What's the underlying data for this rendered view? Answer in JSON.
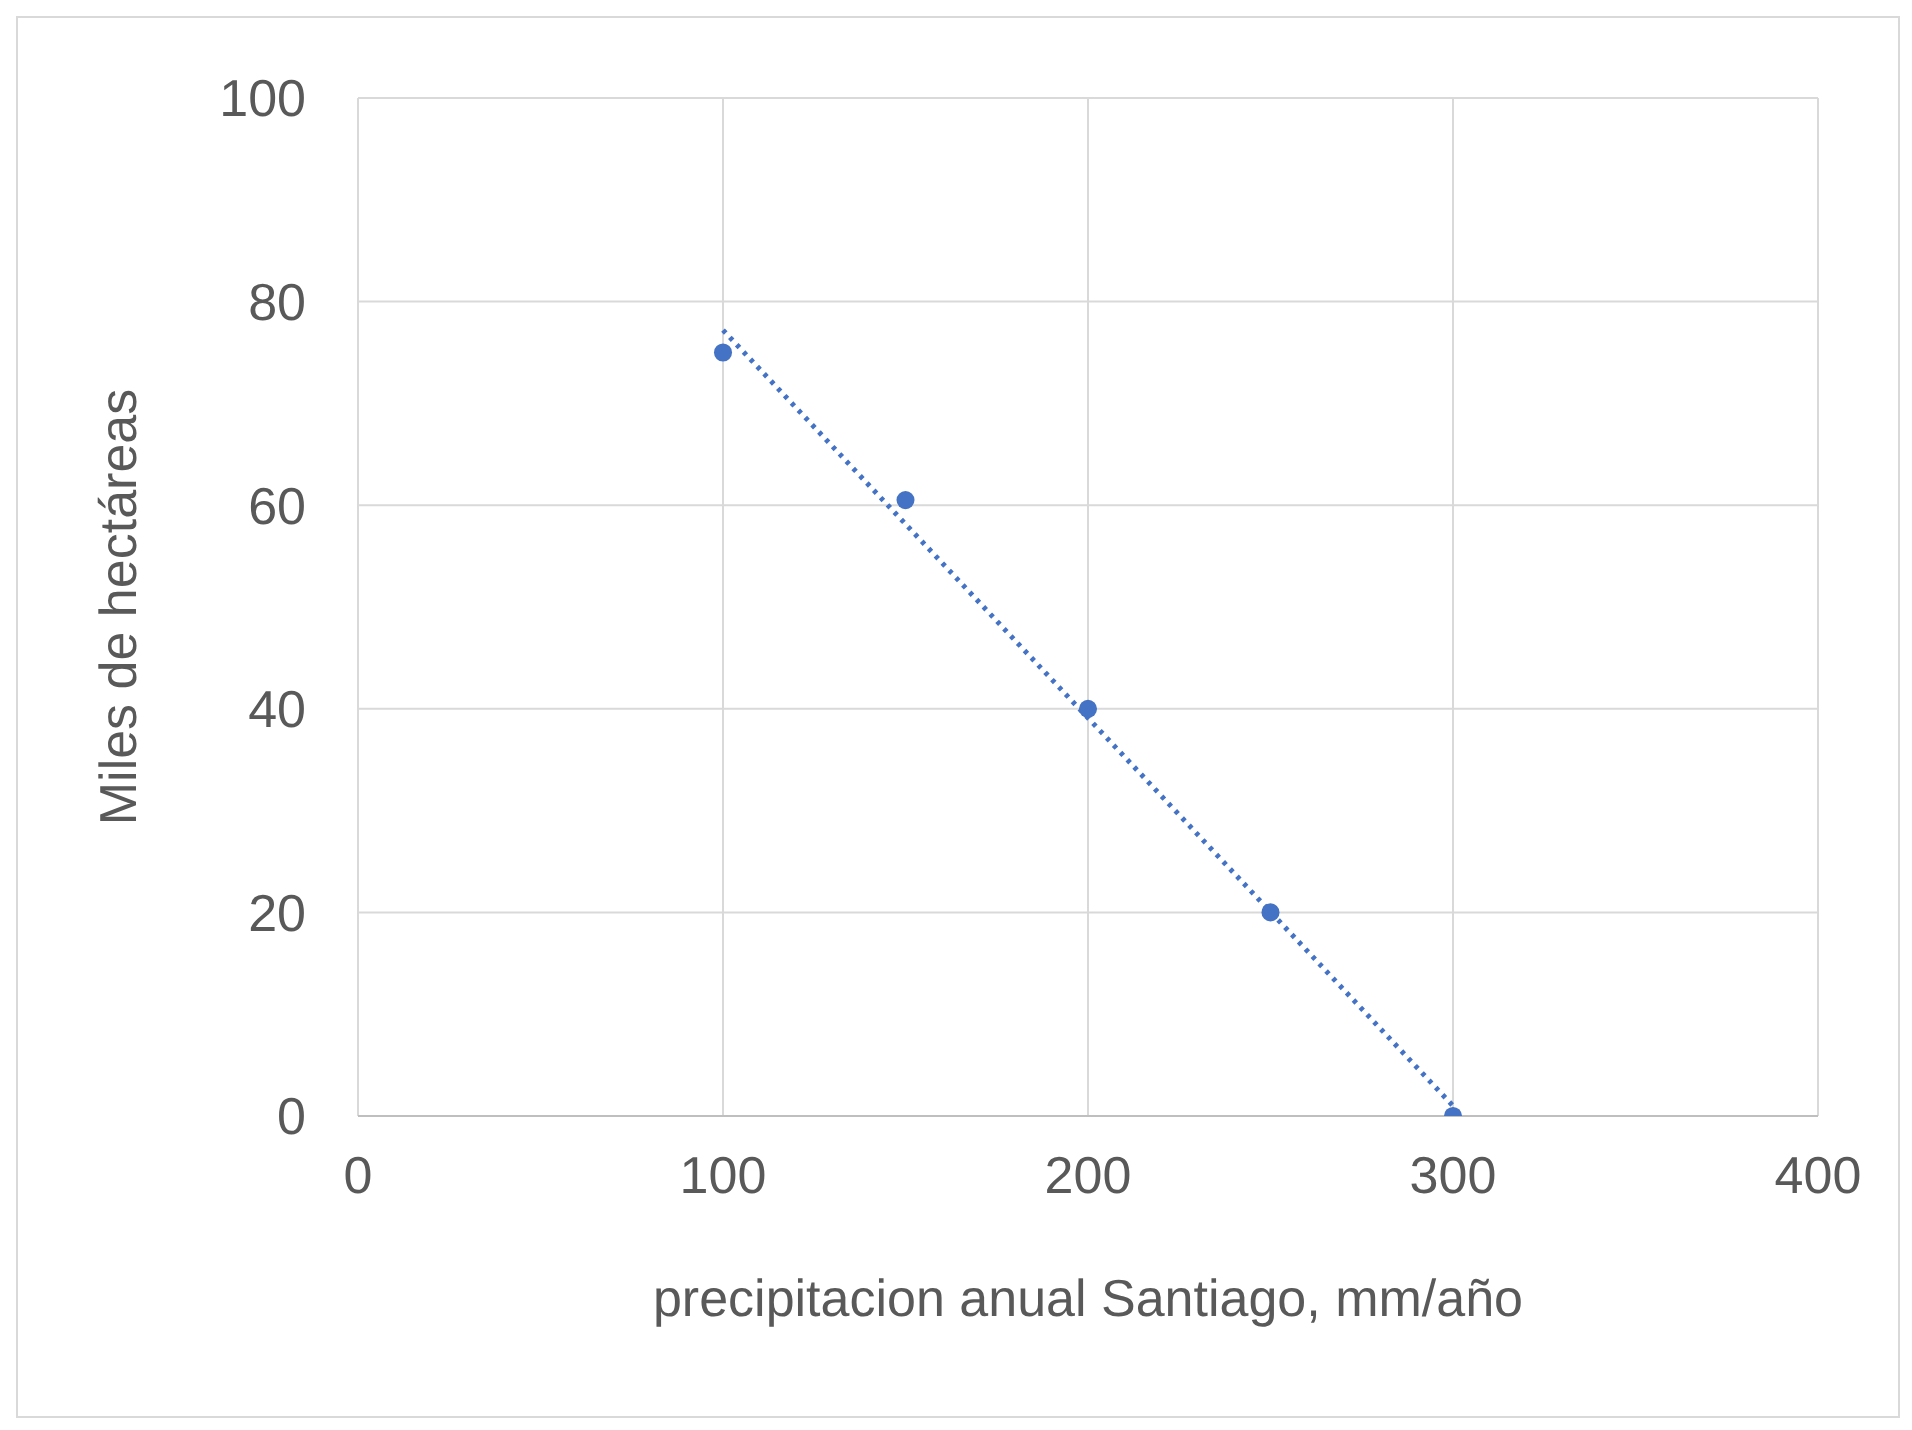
{
  "chart_data": {
    "type": "scatter",
    "xlabel": "precipitacion anual Santiago, mm/año",
    "ylabel": "Miles de hectáreas",
    "xlim": [
      0,
      400
    ],
    "xticks": [
      0,
      100,
      200,
      300,
      400
    ],
    "ylim": [
      0,
      100
    ],
    "yticks": [
      0,
      20,
      40,
      60,
      80,
      100
    ],
    "grid": true,
    "marker": "circle",
    "series": [
      {
        "color": "#4472c4",
        "x": [
          100,
          150,
          200,
          250,
          300
        ],
        "values": [
          75,
          60.5,
          40,
          20,
          0
        ]
      },
      {
        "type": "line",
        "color": "#4472c4",
        "line_style": "dotted",
        "marker": "none",
        "x": [
          100,
          300
        ],
        "values": [
          77.2,
          1
        ]
      }
    ]
  }
}
